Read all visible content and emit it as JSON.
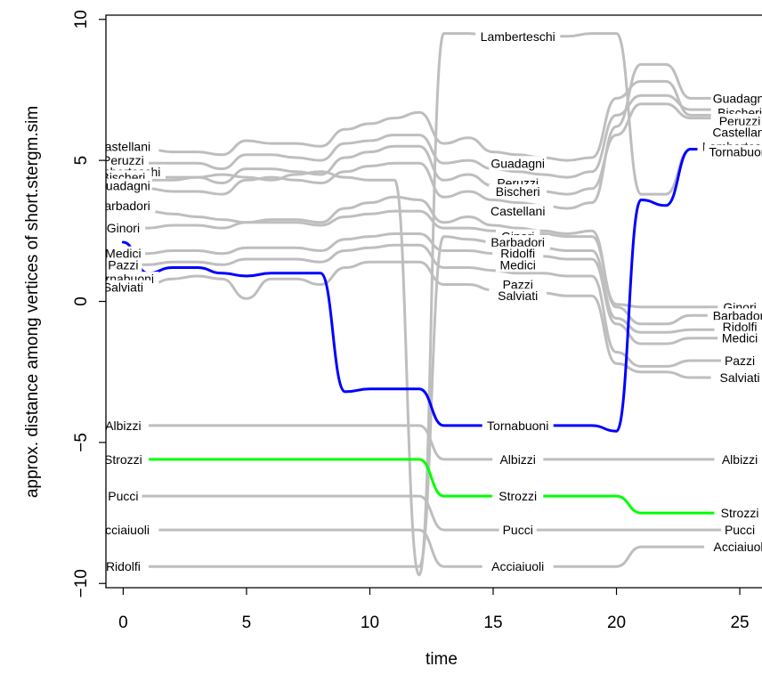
{
  "chart_data": {
    "type": "line",
    "title": "",
    "xlabel": "time",
    "ylabel": "approx. distance among vertices of short.stergm.sim",
    "xlim": [
      -0.7,
      25.9
    ],
    "ylim": [
      -10.15,
      10.15
    ],
    "x_ticks": [
      0,
      5,
      10,
      15,
      20,
      25
    ],
    "y_ticks": [
      -10,
      -5,
      0,
      5,
      10
    ],
    "x_tick_labels": [
      "0",
      "5",
      "10",
      "15",
      "20",
      "25"
    ],
    "y_tick_labels": [
      "−10",
      "−5",
      "0",
      "5",
      "10"
    ],
    "colors": {
      "grey": "#bebebe",
      "blue": "#0000ff",
      "green": "#00ff00",
      "axis": "#000000"
    },
    "time_points": [
      0,
      1,
      2,
      3,
      4,
      5,
      6,
      7,
      8,
      9,
      10,
      11,
      12,
      13,
      14,
      15,
      16,
      17,
      18,
      19,
      20,
      21,
      22,
      23,
      24,
      25
    ],
    "series": [
      {
        "name": "Lamberteschi",
        "color": "#bebebe",
        "values": [
          4.2,
          4.3,
          4.3,
          4.4,
          4.5,
          4.4,
          4.3,
          4.5,
          4.6,
          4.4,
          4.3,
          4.3,
          -9.7,
          9.5,
          9.5,
          9.4,
          9.4,
          9.4,
          9.4,
          9.5,
          9.5,
          3.8,
          3.8,
          5.4,
          5.4,
          5.4
        ]
      },
      {
        "name": "Castellani",
        "color": "#bebebe",
        "values": [
          5.5,
          5.4,
          5.3,
          5.3,
          5.2,
          5.7,
          5.6,
          5.6,
          5.5,
          6.1,
          6.3,
          6.5,
          6.7,
          5.6,
          5.8,
          5.3,
          5.2,
          5.1,
          5.0,
          5.1,
          7.2,
          7.8,
          7.8,
          6.6,
          6.6,
          6.6
        ]
      },
      {
        "name": "Peruzzi",
        "color": "#bebebe",
        "values": [
          5.0,
          4.9,
          4.9,
          4.9,
          4.7,
          5.2,
          5.2,
          5.1,
          5.0,
          5.6,
          5.7,
          5.9,
          5.9,
          4.9,
          5.0,
          4.7,
          4.6,
          4.5,
          4.4,
          4.6,
          6.6,
          7.3,
          7.3,
          6.8,
          6.8,
          6.8
        ]
      },
      {
        "name": "Bischeri",
        "color": "#bebebe",
        "values": [
          4.5,
          4.4,
          4.4,
          4.4,
          4.2,
          4.7,
          4.7,
          4.6,
          4.5,
          5.1,
          5.3,
          5.5,
          5.5,
          4.3,
          4.5,
          4.1,
          4.0,
          3.9,
          3.8,
          4.0,
          5.9,
          7.0,
          7.0,
          6.5,
          6.5,
          6.5
        ]
      },
      {
        "name": "Guadagni",
        "color": "#bebebe",
        "values": [
          4.0,
          4.0,
          3.9,
          3.9,
          3.8,
          4.3,
          4.4,
          4.3,
          4.2,
          4.6,
          4.8,
          4.9,
          4.9,
          3.7,
          3.9,
          3.6,
          3.5,
          3.4,
          3.3,
          3.5,
          6.2,
          8.4,
          8.4,
          7.2,
          7.2,
          7.2
        ]
      },
      {
        "name": "Barbadori",
        "color": "#bebebe",
        "values": [
          3.3,
          3.2,
          3.1,
          3.0,
          2.9,
          2.8,
          2.9,
          2.9,
          2.8,
          3.3,
          3.5,
          3.7,
          3.6,
          2.8,
          3.0,
          2.7,
          2.6,
          2.5,
          2.4,
          2.5,
          -0.2,
          -0.8,
          -0.8,
          -0.5,
          -0.5,
          -0.5
        ]
      },
      {
        "name": "Ginori",
        "color": "#bebebe",
        "values": [
          2.6,
          2.6,
          2.7,
          2.7,
          2.6,
          2.8,
          2.8,
          2.8,
          2.7,
          3.0,
          3.1,
          3.2,
          3.2,
          2.6,
          2.6,
          2.5,
          2.4,
          2.4,
          2.3,
          2.3,
          -0.1,
          -0.2,
          -0.2,
          -0.2,
          -0.2,
          -0.2
        ]
      },
      {
        "name": "Medici",
        "color": "#bebebe",
        "values": [
          1.7,
          1.7,
          1.8,
          1.8,
          1.7,
          1.9,
          1.9,
          1.9,
          1.8,
          2.2,
          2.3,
          2.4,
          2.4,
          1.8,
          1.8,
          1.7,
          1.6,
          1.6,
          1.5,
          1.5,
          -0.8,
          -1.5,
          -1.5,
          -1.3,
          -1.3,
          -1.3
        ]
      },
      {
        "name": "Ridolfi",
        "color": "#bebebe",
        "values": [
          -9.4,
          -9.4,
          -9.4,
          -9.4,
          -9.4,
          -9.4,
          -9.4,
          -9.4,
          -9.4,
          -9.4,
          -9.4,
          -9.4,
          -9.4,
          2.3,
          2.2,
          2.1,
          2.0,
          1.9,
          1.8,
          1.8,
          -0.6,
          -1.1,
          -1.1,
          -1.0,
          -1.0,
          -1.0
        ]
      },
      {
        "name": "Pazzi",
        "color": "#bebebe",
        "values": [
          1.3,
          1.3,
          1.4,
          1.4,
          1.3,
          1.5,
          1.5,
          1.5,
          1.4,
          1.8,
          1.9,
          2.0,
          2.0,
          1.2,
          1.2,
          1.1,
          1.0,
          1.0,
          0.9,
          0.9,
          -1.8,
          -2.3,
          -2.3,
          -2.1,
          -2.1,
          -2.1
        ]
      },
      {
        "name": "Salviati",
        "color": "#bebebe",
        "values": [
          0.6,
          0.6,
          0.8,
          0.9,
          0.8,
          0.1,
          0.8,
          0.8,
          0.6,
          1.2,
          1.4,
          1.4,
          1.4,
          0.6,
          0.6,
          0.4,
          0.3,
          0.3,
          0.2,
          0.2,
          -2.2,
          -2.5,
          -2.5,
          -2.7,
          -2.7,
          -2.7
        ]
      },
      {
        "name": "Tornabuoni",
        "color": "#0000ff",
        "values": [
          2.1,
          1.0,
          1.2,
          1.2,
          1.0,
          0.9,
          1.0,
          1.0,
          1.0,
          -3.2,
          -3.1,
          -3.1,
          -3.1,
          -4.4,
          -4.4,
          -4.4,
          -4.4,
          -4.4,
          -4.4,
          -4.4,
          -4.6,
          3.6,
          3.4,
          5.4,
          5.4,
          5.4
        ]
      },
      {
        "name": "Albizzi",
        "color": "#bebebe",
        "values": [
          -4.4,
          -4.4,
          -4.4,
          -4.4,
          -4.4,
          -4.4,
          -4.4,
          -4.4,
          -4.4,
          -4.4,
          -4.4,
          -4.4,
          -4.4,
          -5.6,
          -5.6,
          -5.6,
          -5.6,
          -5.6,
          -5.6,
          -5.6,
          -5.6,
          -5.6,
          -5.6,
          -5.6,
          -5.6,
          -5.6
        ]
      },
      {
        "name": "Strozzi",
        "color": "#00ff00",
        "values": [
          -5.6,
          -5.6,
          -5.6,
          -5.6,
          -5.6,
          -5.6,
          -5.6,
          -5.6,
          -5.6,
          -5.6,
          -5.6,
          -5.6,
          -5.6,
          -6.9,
          -6.9,
          -6.9,
          -6.9,
          -6.9,
          -6.9,
          -6.9,
          -6.9,
          -7.5,
          -7.5,
          -7.5,
          -7.5,
          -7.5
        ]
      },
      {
        "name": "Pucci",
        "color": "#bebebe",
        "values": [
          -6.9,
          -6.9,
          -6.9,
          -6.9,
          -6.9,
          -6.9,
          -6.9,
          -6.9,
          -6.9,
          -6.9,
          -6.9,
          -6.9,
          -6.9,
          -8.1,
          -8.1,
          -8.1,
          -8.1,
          -8.1,
          -8.1,
          -8.1,
          -8.1,
          -8.1,
          -8.1,
          -8.1,
          -8.1,
          -8.1
        ]
      },
      {
        "name": "Acciaiuoli",
        "color": "#bebebe",
        "values": [
          -8.1,
          -8.1,
          -8.1,
          -8.1,
          -8.1,
          -8.1,
          -8.1,
          -8.1,
          -8.1,
          -8.1,
          -8.1,
          -8.1,
          -8.1,
          -9.4,
          -9.4,
          -9.4,
          -9.4,
          -9.4,
          -9.4,
          -9.4,
          -9.4,
          -8.7,
          -8.7,
          -8.7,
          -8.7,
          -8.7
        ]
      }
    ],
    "annotations": {
      "start_t0": [
        {
          "text": "Castellani",
          "y": 5.5
        },
        {
          "text": "Peruzzi",
          "y": 5.0
        },
        {
          "text": "Lamberteschi",
          "y": 4.6
        },
        {
          "text": "Bischeri",
          "y": 4.4
        },
        {
          "text": "Guadagni",
          "y": 4.1
        },
        {
          "text": "Barbadori",
          "y": 3.4
        },
        {
          "text": "Ginori",
          "y": 2.6
        },
        {
          "text": "Medici",
          "y": 1.7
        },
        {
          "text": "Pazzi",
          "y": 1.3
        },
        {
          "text": "Tornabuoni",
          "y": 0.8
        },
        {
          "text": "Salviati",
          "y": 0.5
        },
        {
          "text": "Albizzi",
          "y": -4.4
        },
        {
          "text": "Strozzi",
          "y": -5.6
        },
        {
          "text": "Pucci",
          "y": -6.9
        },
        {
          "text": "Acciaiuoli",
          "y": -8.1
        },
        {
          "text": "Ridolfi",
          "y": -9.4
        }
      ],
      "mid_t16": [
        {
          "text": "Lamberteschi",
          "y": 9.4
        },
        {
          "text": "Guadagni",
          "y": 4.9
        },
        {
          "text": "Peruzzi",
          "y": 4.2
        },
        {
          "text": "Bischeri",
          "y": 3.9
        },
        {
          "text": "Castellani",
          "y": 3.2
        },
        {
          "text": "Ginori",
          "y": 2.3
        },
        {
          "text": "Barbadori",
          "y": 2.1
        },
        {
          "text": "Ridolfi",
          "y": 1.7
        },
        {
          "text": "Medici",
          "y": 1.3
        },
        {
          "text": "Pazzi",
          "y": 0.6
        },
        {
          "text": "Salviati",
          "y": 0.2
        },
        {
          "text": "Tornabuoni",
          "y": -4.4
        },
        {
          "text": "Albizzi",
          "y": -5.6
        },
        {
          "text": "Strozzi",
          "y": -6.9
        },
        {
          "text": "Pucci",
          "y": -8.1
        },
        {
          "text": "Acciaiuoli",
          "y": -9.4
        }
      ],
      "end_t25": [
        {
          "text": "Guadagni",
          "y": 7.2
        },
        {
          "text": "Bischeri",
          "y": 6.7
        },
        {
          "text": "Peruzzi",
          "y": 6.4
        },
        {
          "text": "Castellani",
          "y": 6.0
        },
        {
          "text": "Lamberteschi",
          "y": 5.5
        },
        {
          "text": "Tornabuoni",
          "y": 5.3
        },
        {
          "text": "Ginori",
          "y": -0.2
        },
        {
          "text": "Barbadori",
          "y": -0.5
        },
        {
          "text": "Ridolfi",
          "y": -0.9
        },
        {
          "text": "Medici",
          "y": -1.3
        },
        {
          "text": "Pazzi",
          "y": -2.1
        },
        {
          "text": "Salviati",
          "y": -2.7
        },
        {
          "text": "Albizzi",
          "y": -5.6
        },
        {
          "text": "Strozzi",
          "y": -7.5
        },
        {
          "text": "Pucci",
          "y": -8.1
        },
        {
          "text": "Acciaiuoli",
          "y": -8.7
        }
      ]
    }
  }
}
